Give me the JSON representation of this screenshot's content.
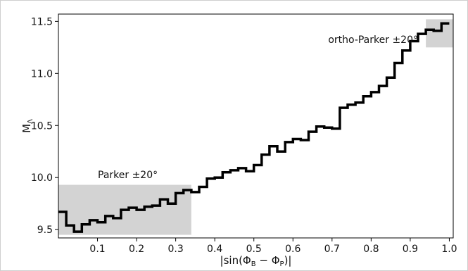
{
  "chart_data": {
    "type": "line",
    "step": true,
    "title": "",
    "xlabel": "|sin(Φ_B − Φ_P)|",
    "ylabel": "M_Λ",
    "xlim": [
      0.0,
      1.01
    ],
    "ylim": [
      9.42,
      11.57
    ],
    "x_ticks": [
      "0.1",
      "0.2",
      "0.3",
      "0.4",
      "0.5",
      "0.6",
      "0.7",
      "0.8",
      "0.9",
      "1.0"
    ],
    "y_ticks": [
      "9.5",
      "10.0",
      "10.5",
      "11.0",
      "11.5"
    ],
    "grid": false,
    "bin_width": 0.02,
    "x_start": 0.0,
    "series": [
      {
        "color": "#000000",
        "values": [
          9.67,
          9.54,
          9.48,
          9.55,
          9.59,
          9.57,
          9.63,
          9.61,
          9.69,
          9.71,
          9.69,
          9.72,
          9.73,
          9.79,
          9.75,
          9.85,
          9.88,
          9.86,
          9.91,
          9.99,
          10.0,
          10.05,
          10.07,
          10.09,
          10.06,
          10.12,
          10.22,
          10.3,
          10.25,
          10.34,
          10.37,
          10.36,
          10.44,
          10.49,
          10.48,
          10.47,
          10.67,
          10.7,
          10.72,
          10.78,
          10.82,
          10.88,
          10.96,
          11.1,
          11.22,
          11.31,
          11.38,
          11.42,
          11.41,
          11.48
        ]
      }
    ],
    "shaded_regions": [
      {
        "x": [
          0.0,
          0.34
        ],
        "y": [
          9.45,
          9.93
        ],
        "color": "#d3d3d3",
        "label": "Parker ±20°"
      },
      {
        "x": [
          0.94,
          1.01
        ],
        "y": [
          11.25,
          11.52
        ],
        "color": "#d3d3d3",
        "label": "ortho-Parker ±20°"
      }
    ],
    "annotations": {
      "parker": "Parker ±20°",
      "ortho_parker": "ortho-Parker ±20°"
    }
  }
}
